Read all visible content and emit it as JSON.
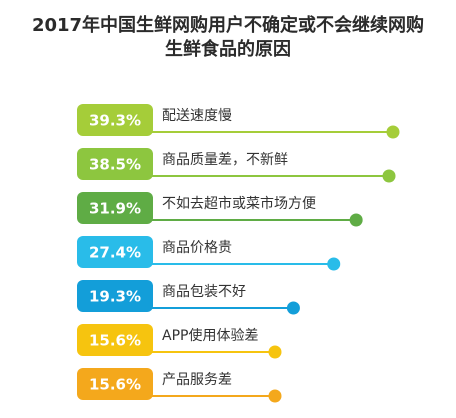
{
  "chart_data": {
    "type": "bar",
    "title_lines": [
      "2017年中国生鲜网购用户不确定或不会继续网购",
      "生鲜食品的原因"
    ],
    "categories": [
      "配送速度慢",
      "商品质量差，不新鲜",
      "不如去超市或菜市场方便",
      "商品价格贵",
      "商品包装不好",
      "APP使用体验差",
      "产品服务差"
    ],
    "values": [
      39.3,
      38.5,
      31.9,
      27.4,
      19.3,
      15.6,
      15.6
    ],
    "value_labels": [
      "39.3%",
      "38.5%",
      "31.9%",
      "27.4%",
      "19.3%",
      "15.6%",
      "15.6%"
    ],
    "colors": [
      "#a5cd39",
      "#8dc63f",
      "#5fac45",
      "#29bce9",
      "#139ed9",
      "#f6c40f",
      "#f4a81c"
    ],
    "unit": "%"
  }
}
